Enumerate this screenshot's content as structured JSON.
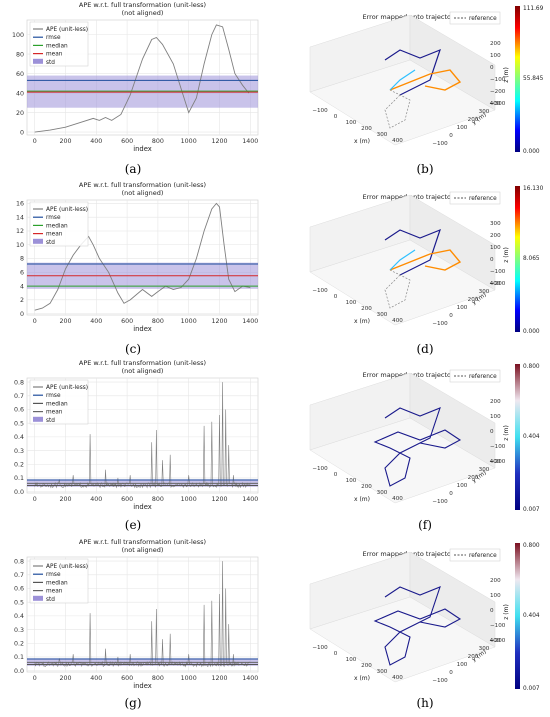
{
  "colors": {
    "ape": "#7f7f7f",
    "rmse": "#1f4e9c",
    "median": "#2ca02c",
    "mean": "#d62728",
    "std": "#9c91d8",
    "median_gray": "#555555",
    "mean_gray": "#666666"
  },
  "chart_data": [
    {
      "type": "line",
      "id": "a",
      "caption": "(a)",
      "title": "APE w.r.t. full transformation (unit-less)",
      "subtitle": "(not aligned)",
      "xlabel": "index",
      "ylabel": "",
      "xlim": [
        -50,
        1450
      ],
      "ylim": [
        -3,
        115
      ],
      "xticks": [
        0,
        200,
        400,
        600,
        800,
        1000,
        1200,
        1400
      ],
      "yticks": [
        0,
        20,
        40,
        60,
        80,
        100
      ],
      "legend": [
        "APE (unit-less)",
        "rmse",
        "median",
        "mean",
        "std"
      ],
      "legend_position": "top-left",
      "stats": {
        "rmse": 53,
        "median": 42,
        "mean": 41,
        "std_low": 25,
        "std_high": 58
      },
      "median_color": "#2ca02c",
      "mean_color": "#d62728",
      "series": [
        {
          "x": [
            0,
            100,
            200,
            300,
            380,
            420,
            460,
            500,
            560,
            620,
            700,
            760,
            790,
            830,
            900,
            960,
            1000,
            1050,
            1100,
            1150,
            1180,
            1220,
            1260,
            1300,
            1350,
            1390
          ],
          "y": [
            0,
            2,
            5,
            10,
            14,
            12,
            15,
            12,
            18,
            38,
            75,
            95,
            97,
            90,
            70,
            40,
            20,
            35,
            70,
            100,
            110,
            108,
            85,
            60,
            48,
            40
          ]
        }
      ]
    },
    {
      "type": "surface3d",
      "id": "b",
      "caption": "(b)",
      "title": "Error mapped onto trajectory",
      "legend": [
        "reference"
      ],
      "legend_position": "top-right",
      "colorbar_labels": [
        "111.69",
        "55.845",
        "0.000"
      ],
      "colorbar_scheme": "jet",
      "path_color": "mixed",
      "x_ticks": [
        "−100",
        "0",
        "100",
        "200",
        "300",
        "400"
      ],
      "y_ticks": [
        "−100",
        "0",
        "100",
        "200",
        "300",
        "400"
      ],
      "z_ticks": [
        "200",
        "100",
        "0",
        "−100",
        "−200",
        "−300"
      ],
      "xlabel": "x (m)",
      "ylabel": "y (m)",
      "zlabel": "z (m)"
    },
    {
      "type": "line",
      "id": "c",
      "caption": "(c)",
      "title": "APE w.r.t. full transformation (unit-less)",
      "subtitle": "(not aligned)",
      "xlabel": "index",
      "ylabel": "",
      "xlim": [
        -50,
        1450
      ],
      "ylim": [
        -0.2,
        16.5
      ],
      "xticks": [
        0,
        200,
        400,
        600,
        800,
        1000,
        1200,
        1400
      ],
      "yticks": [
        0,
        2,
        4,
        6,
        8,
        10,
        12,
        14,
        16
      ],
      "legend": [
        "APE (unit-less)",
        "rmse",
        "median",
        "mean",
        "std"
      ],
      "legend_position": "top-left",
      "stats": {
        "rmse": 7.2,
        "median": 4.0,
        "mean": 5.5,
        "std_low": 3.6,
        "std_high": 7.4
      },
      "median_color": "#2ca02c",
      "mean_color": "#d62728",
      "series": [
        {
          "x": [
            0,
            50,
            100,
            150,
            200,
            250,
            300,
            350,
            380,
            420,
            480,
            540,
            580,
            620,
            700,
            760,
            800,
            850,
            900,
            950,
            1000,
            1050,
            1100,
            1150,
            1180,
            1200,
            1230,
            1260,
            1300,
            1350,
            1400
          ],
          "y": [
            0.5,
            0.8,
            1.5,
            3.5,
            6.5,
            8.5,
            10,
            11.2,
            10,
            8,
            6,
            3,
            1.5,
            2,
            3.5,
            2.5,
            3.2,
            4,
            3.5,
            3.8,
            5,
            8,
            12,
            15.2,
            16,
            15.5,
            10,
            5,
            3.2,
            4,
            3.8
          ]
        }
      ]
    },
    {
      "type": "surface3d",
      "id": "d",
      "caption": "(d)",
      "title": "Error mapped onto trajectory",
      "legend": [
        "reference"
      ],
      "legend_position": "top-right",
      "colorbar_labels": [
        "16.130",
        "8.065",
        "0.000"
      ],
      "colorbar_scheme": "jet",
      "path_color": "mixed",
      "x_ticks": [
        "−100",
        "0",
        "100",
        "200",
        "300",
        "400"
      ],
      "y_ticks": [
        "−100",
        "0",
        "100",
        "200",
        "300",
        "400"
      ],
      "z_ticks": [
        "300",
        "200",
        "100",
        "0",
        "−100",
        "−200"
      ],
      "xlabel": "x (m)",
      "ylabel": "y (m)",
      "zlabel": "z (m)"
    },
    {
      "type": "line",
      "id": "e",
      "caption": "(e)",
      "title": "APE w.r.t. full transformation (unit-less)",
      "subtitle": "(not aligned)",
      "xlabel": "index",
      "ylabel": "",
      "xlim": [
        -50,
        1450
      ],
      "ylim": [
        -0.01,
        0.83
      ],
      "xticks": [
        0,
        200,
        400,
        600,
        800,
        1000,
        1200,
        1400
      ],
      "yticks": [
        0.0,
        0.1,
        0.2,
        0.3,
        0.4,
        0.5,
        0.6,
        0.7,
        0.8
      ],
      "legend": [
        "APE (unit-less)",
        "rmse",
        "median",
        "mean",
        "std"
      ],
      "legend_position": "top-left",
      "stats": {
        "rmse": 0.085,
        "median": 0.045,
        "mean": 0.06,
        "std_low": 0.035,
        "std_high": 0.09
      },
      "median_color": "#555555",
      "mean_color": "#666666",
      "spikes": [
        [
          160,
          0.09
        ],
        [
          250,
          0.12
        ],
        [
          360,
          0.42
        ],
        [
          460,
          0.16
        ],
        [
          540,
          0.1
        ],
        [
          620,
          0.12
        ],
        [
          760,
          0.36
        ],
        [
          790,
          0.45
        ],
        [
          830,
          0.23
        ],
        [
          880,
          0.27
        ],
        [
          1000,
          0.12
        ],
        [
          1100,
          0.48
        ],
        [
          1150,
          0.51
        ],
        [
          1200,
          0.56
        ],
        [
          1220,
          0.8
        ],
        [
          1240,
          0.6
        ],
        [
          1260,
          0.34
        ],
        [
          1290,
          0.12
        ]
      ],
      "series": [
        {
          "x": [],
          "y": []
        }
      ]
    },
    {
      "type": "surface3d",
      "id": "f",
      "caption": "(f)",
      "title": "Error mapped onto trajectory",
      "legend": [
        "reference"
      ],
      "legend_position": "top-right",
      "colorbar_labels": [
        "0.800",
        "0.404",
        "0.007"
      ],
      "colorbar_scheme": "ocean",
      "path_color": "navy",
      "x_ticks": [
        "−100",
        "0",
        "100",
        "200",
        "300",
        "400"
      ],
      "y_ticks": [
        "−100",
        "0",
        "100",
        "200",
        "300",
        "400"
      ],
      "z_ticks": [
        "200",
        "100",
        "0",
        "−100",
        "−200"
      ],
      "xlabel": "x (m)",
      "ylabel": "y (m)",
      "zlabel": "z (m)"
    },
    {
      "type": "line",
      "id": "g",
      "caption": "(g)",
      "title": "APE w.r.t. full transformation (unit-less)",
      "subtitle": "(not aligned)",
      "xlabel": "index",
      "ylabel": "",
      "xlim": [
        -50,
        1450
      ],
      "ylim": [
        -0.01,
        0.83
      ],
      "xticks": [
        0,
        200,
        400,
        600,
        800,
        1000,
        1200,
        1400
      ],
      "yticks": [
        0.0,
        0.1,
        0.2,
        0.3,
        0.4,
        0.5,
        0.6,
        0.7,
        0.8
      ],
      "legend": [
        "APE (unit-less)",
        "rmse",
        "median",
        "mean",
        "std"
      ],
      "legend_position": "top-left",
      "stats": {
        "rmse": 0.085,
        "median": 0.045,
        "mean": 0.06,
        "std_low": 0.035,
        "std_high": 0.09
      },
      "median_color": "#555555",
      "mean_color": "#666666",
      "spikes": [
        [
          160,
          0.09
        ],
        [
          250,
          0.12
        ],
        [
          360,
          0.42
        ],
        [
          460,
          0.16
        ],
        [
          540,
          0.1
        ],
        [
          620,
          0.12
        ],
        [
          760,
          0.36
        ],
        [
          790,
          0.45
        ],
        [
          830,
          0.23
        ],
        [
          880,
          0.27
        ],
        [
          1000,
          0.12
        ],
        [
          1100,
          0.48
        ],
        [
          1150,
          0.51
        ],
        [
          1200,
          0.56
        ],
        [
          1220,
          0.8
        ],
        [
          1240,
          0.6
        ],
        [
          1260,
          0.34
        ],
        [
          1290,
          0.12
        ]
      ],
      "series": [
        {
          "x": [],
          "y": []
        }
      ]
    },
    {
      "type": "surface3d",
      "id": "h",
      "caption": "(h)",
      "title": "Error mapped onto trajectory",
      "legend": [
        "reference"
      ],
      "legend_position": "top-right",
      "colorbar_labels": [
        "0.800",
        "0.404",
        "0.007"
      ],
      "colorbar_scheme": "ocean",
      "path_color": "navy",
      "x_ticks": [
        "−100",
        "0",
        "100",
        "200",
        "300",
        "400"
      ],
      "y_ticks": [
        "−100",
        "0",
        "100",
        "200",
        "300",
        "400"
      ],
      "z_ticks": [
        "200",
        "100",
        "0",
        "−100",
        "−200"
      ],
      "xlabel": "x (m)",
      "ylabel": "y (m)",
      "zlabel": "z (m)"
    }
  ]
}
